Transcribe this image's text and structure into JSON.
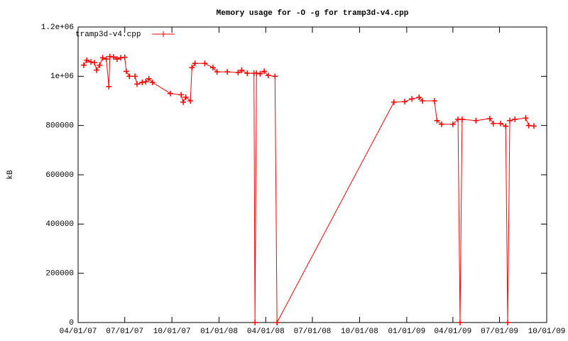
{
  "chart_data": {
    "type": "line",
    "title": "Memory usage for -O -g for tramp3d-v4.cpp",
    "ylabel": "kB",
    "x": [
      "2007-04-12",
      "2007-04-18",
      "2007-04-26",
      "2007-05-03",
      "2007-05-07",
      "2007-05-13",
      "2007-05-19",
      "2007-05-26",
      "2007-05-31",
      "2007-06-02",
      "2007-06-09",
      "2007-06-16",
      "2007-06-23",
      "2007-07-01",
      "2007-07-04",
      "2007-07-10",
      "2007-07-21",
      "2007-07-25",
      "2007-08-04",
      "2007-08-11",
      "2007-08-17",
      "2007-08-24",
      "2007-09-28",
      "2007-10-19",
      "2007-10-23",
      "2007-10-28",
      "2007-11-06",
      "2007-11-09",
      "2007-11-15",
      "2007-12-04",
      "2007-12-20",
      "2007-12-28",
      "2008-01-17",
      "2008-02-07",
      "2008-02-14",
      "2008-02-25",
      "2008-03-09",
      "2008-03-11",
      "2008-03-14",
      "2008-03-21",
      "2008-03-29",
      "2008-04-06",
      "2008-04-19",
      "2008-04-23",
      "2008-12-07",
      "2008-12-28",
      "2009-01-11",
      "2009-01-25",
      "2009-02-01",
      "2009-02-24",
      "2009-03-01",
      "2009-03-10",
      "2009-04-01",
      "2009-04-11",
      "2009-04-15",
      "2009-04-19",
      "2009-05-16",
      "2009-06-12",
      "2009-06-19",
      "2009-07-03",
      "2009-07-13",
      "2009-07-17",
      "2009-07-21",
      "2009-07-31",
      "2009-08-21",
      "2009-08-27",
      "2009-09-06"
    ],
    "series": [
      {
        "name": "tramp3d-v4.cpp",
        "color": "#ff0000",
        "values": [
          1045000,
          1065000,
          1058000,
          1055000,
          1025000,
          1045000,
          1075000,
          1070000,
          958000,
          1080000,
          1078000,
          1070000,
          1075000,
          1077000,
          1020000,
          1000000,
          1000000,
          968000,
          975000,
          978000,
          990000,
          975000,
          930000,
          925000,
          895000,
          915000,
          900000,
          1035000,
          1052000,
          1052000,
          1035000,
          1018000,
          1018000,
          1015000,
          1024000,
          1012000,
          1012000,
          0,
          1012000,
          1010000,
          1020000,
          1003000,
          1000000,
          0,
          895000,
          897000,
          908000,
          914000,
          900000,
          900000,
          820000,
          805000,
          805000,
          825000,
          0,
          825000,
          820000,
          828000,
          808000,
          808000,
          797000,
          0,
          820000,
          825000,
          830000,
          800000,
          798000
        ]
      }
    ],
    "xlim": [
      "2007-04-01",
      "2009-10-01"
    ],
    "xticks": [
      {
        "value": "2007-04-01",
        "label": "04/01/07"
      },
      {
        "value": "2007-07-01",
        "label": "07/01/07"
      },
      {
        "value": "2007-10-01",
        "label": "10/01/07"
      },
      {
        "value": "2008-01-01",
        "label": "01/01/08"
      },
      {
        "value": "2008-04-01",
        "label": "04/01/08"
      },
      {
        "value": "2008-07-01",
        "label": "07/01/08"
      },
      {
        "value": "2008-10-01",
        "label": "10/01/08"
      },
      {
        "value": "2009-01-01",
        "label": "01/01/09"
      },
      {
        "value": "2009-04-01",
        "label": "04/01/09"
      },
      {
        "value": "2009-07-01",
        "label": "07/01/09"
      },
      {
        "value": "2009-10-01",
        "label": "10/01/09"
      }
    ],
    "ylim": [
      0,
      1200000
    ],
    "yticks": [
      0,
      200000,
      400000,
      600000,
      800000,
      {
        "value": 1000000,
        "label": "1e+06"
      },
      {
        "value": 1200000,
        "label": "1.2e+06"
      }
    ],
    "legend": "top-left"
  }
}
